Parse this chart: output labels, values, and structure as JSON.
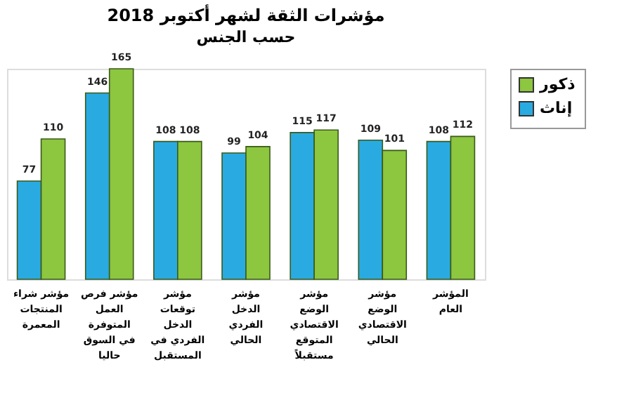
{
  "chart_data": {
    "type": "bar",
    "title": "مؤشرات الثقة لشهر أكتوبر 2018",
    "subtitle": "حسب الجنس",
    "categories": [
      "مؤشر شراء المنتجات المعمرة",
      "مؤشر فرص العمل المتوفرة في السوق حاليا",
      "مؤشر توقعات الدخل الفردي في المستقبل",
      "مؤشر الدخل الفردي الحالي",
      "مؤشر الوضع الاقتصادي المتوقع مستقبلاً",
      "مؤشر الوضع الاقتصادي الحالي",
      "المؤشر العام"
    ],
    "series": [
      {
        "name": "إناث",
        "color": "#29abe2",
        "values": [
          77,
          146,
          108,
          99,
          115,
          109,
          108
        ]
      },
      {
        "name": "ذكور",
        "color": "#8dc63f",
        "values": [
          110,
          165,
          108,
          104,
          117,
          101,
          112
        ]
      }
    ],
    "data_labels": true,
    "legend": "right",
    "grid": false,
    "tick_labels": "x"
  }
}
